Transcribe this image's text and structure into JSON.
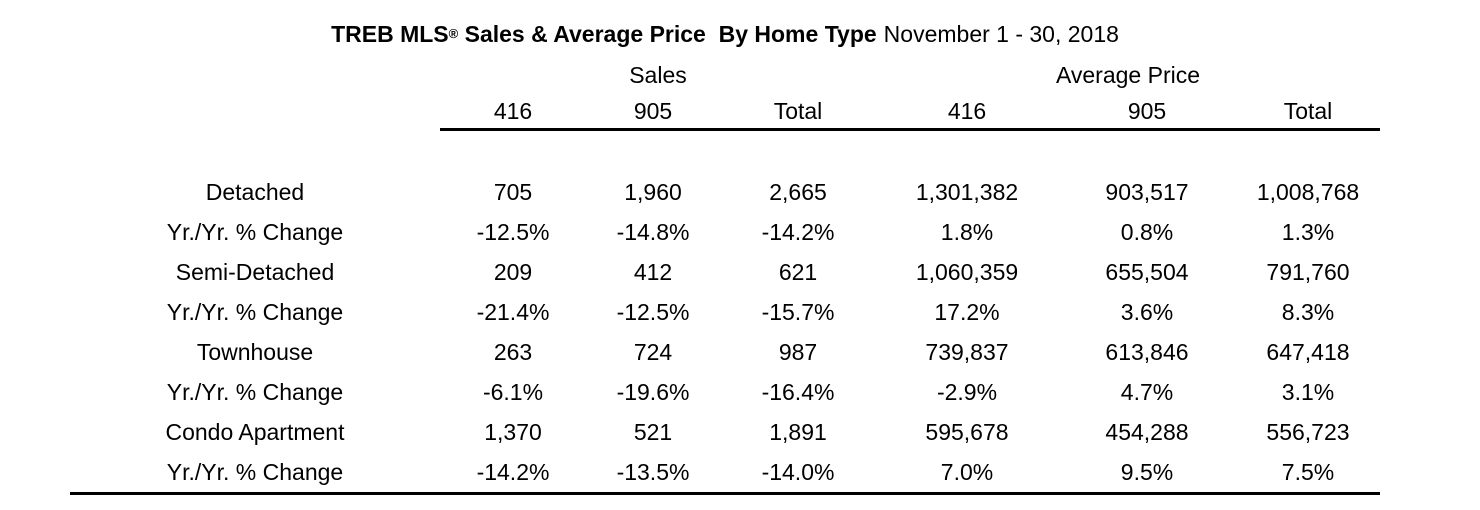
{
  "title": {
    "bold_prefix": "TREB MLS",
    "registered_mark": "®",
    "bold_suffix": " Sales & Average Price  By Home Type",
    "date_range": "November 1 - 30, 2018"
  },
  "table": {
    "group_headers": {
      "sales": "Sales",
      "average_price": "Average Price"
    },
    "column_headers": [
      "416",
      "905",
      "Total",
      "416",
      "905",
      "Total"
    ],
    "rows": [
      {
        "label": "Detached",
        "values": [
          "705",
          "1,960",
          "2,665",
          "1,301,382",
          "903,517",
          "1,008,768"
        ]
      },
      {
        "label": "Yr./Yr. % Change",
        "values": [
          "-12.5%",
          "-14.8%",
          "-14.2%",
          "1.8%",
          "0.8%",
          "1.3%"
        ]
      },
      {
        "label": "Semi-Detached",
        "values": [
          "209",
          "412",
          "621",
          "1,060,359",
          "655,504",
          "791,760"
        ]
      },
      {
        "label": "Yr./Yr. % Change",
        "values": [
          "-21.4%",
          "-12.5%",
          "-15.7%",
          "17.2%",
          "3.6%",
          "8.3%"
        ]
      },
      {
        "label": "Townhouse",
        "values": [
          "263",
          "724",
          "987",
          "739,837",
          "613,846",
          "647,418"
        ]
      },
      {
        "label": "Yr./Yr. % Change",
        "values": [
          "-6.1%",
          "-19.6%",
          "-16.4%",
          "-2.9%",
          "4.7%",
          "3.1%"
        ]
      },
      {
        "label": "Condo Apartment",
        "values": [
          "1,370",
          "521",
          "1,891",
          "595,678",
          "454,288",
          "556,723"
        ]
      },
      {
        "label": "Yr./Yr. % Change",
        "values": [
          "-14.2%",
          "-13.5%",
          "-14.0%",
          "7.0%",
          "9.5%",
          "7.5%"
        ]
      }
    ]
  },
  "chart_data": {
    "type": "table",
    "title": "TREB MLS® Sales & Average Price By Home Type November 1 - 30, 2018",
    "column_groups": [
      "Sales",
      "Average Price"
    ],
    "sub_columns": [
      "416",
      "905",
      "Total"
    ],
    "rows": [
      {
        "home_type": "Detached",
        "sales_416": 705,
        "sales_905": 1960,
        "sales_total": 2665,
        "avg_price_416": 1301382,
        "avg_price_905": 903517,
        "avg_price_total": 1008768,
        "yoy_change": {
          "sales_416": "-12.5%",
          "sales_905": "-14.8%",
          "sales_total": "-14.2%",
          "avg_price_416": "1.8%",
          "avg_price_905": "0.8%",
          "avg_price_total": "1.3%"
        }
      },
      {
        "home_type": "Semi-Detached",
        "sales_416": 209,
        "sales_905": 412,
        "sales_total": 621,
        "avg_price_416": 1060359,
        "avg_price_905": 655504,
        "avg_price_total": 791760,
        "yoy_change": {
          "sales_416": "-21.4%",
          "sales_905": "-12.5%",
          "sales_total": "-15.7%",
          "avg_price_416": "17.2%",
          "avg_price_905": "3.6%",
          "avg_price_total": "8.3%"
        }
      },
      {
        "home_type": "Townhouse",
        "sales_416": 263,
        "sales_905": 724,
        "sales_total": 987,
        "avg_price_416": 739837,
        "avg_price_905": 613846,
        "avg_price_total": 647418,
        "yoy_change": {
          "sales_416": "-6.1%",
          "sales_905": "-19.6%",
          "sales_total": "-16.4%",
          "avg_price_416": "-2.9%",
          "avg_price_905": "4.7%",
          "avg_price_total": "3.1%"
        }
      },
      {
        "home_type": "Condo Apartment",
        "sales_416": 1370,
        "sales_905": 521,
        "sales_total": 1891,
        "avg_price_416": 595678,
        "avg_price_905": 454288,
        "avg_price_total": 556723,
        "yoy_change": {
          "sales_416": "-14.2%",
          "sales_905": "-13.5%",
          "sales_total": "-14.0%",
          "avg_price_416": "7.0%",
          "avg_price_905": "9.5%",
          "avg_price_total": "7.5%"
        }
      }
    ]
  }
}
